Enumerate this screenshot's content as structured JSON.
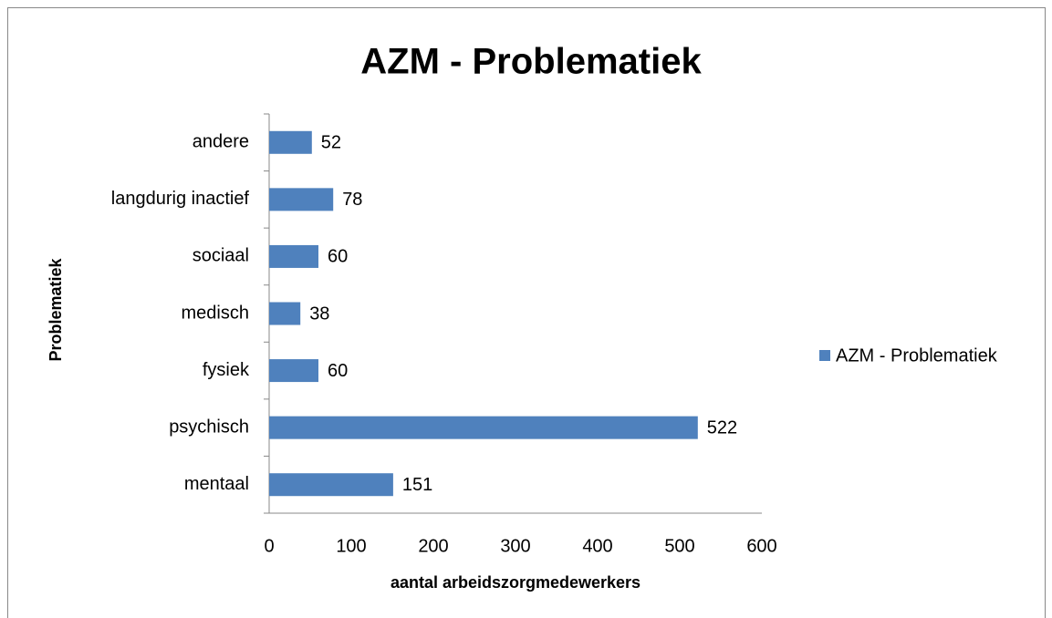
{
  "chart_data": {
    "type": "bar",
    "orientation": "horizontal",
    "title": "AZM - Problematiek",
    "x_label": "aantal arbeidszorgmedewerkers",
    "y_label": "Problematiek",
    "categories": [
      "mentaal",
      "psychisch",
      "fysiek",
      "medisch",
      "sociaal",
      "langdurig inactief",
      "andere"
    ],
    "series": [
      {
        "name": "AZM - Problematiek",
        "color": "#4f81bd",
        "values": [
          151,
          522,
          60,
          38,
          60,
          78,
          52
        ]
      }
    ],
    "xlim": [
      0,
      600
    ],
    "xticks": [
      0,
      100,
      200,
      300,
      400,
      500,
      600
    ],
    "grid": false,
    "legend": "right"
  }
}
